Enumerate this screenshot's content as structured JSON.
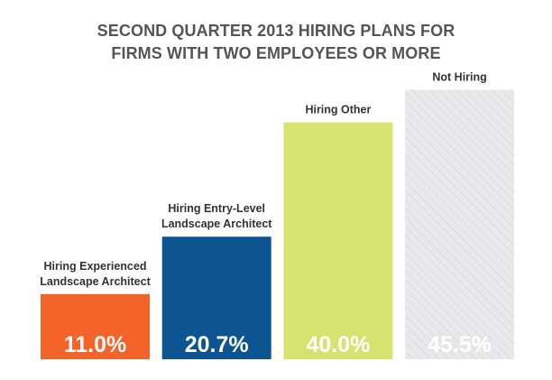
{
  "chart_data": {
    "type": "bar",
    "title_lines": [
      "SECOND QUARTER 2013 HIRING PLANS FOR",
      "FIRMS WITH TWO EMPLOYEES OR MORE"
    ],
    "categories": [
      [
        "Hiring Experienced",
        "Landscape Architect"
      ],
      [
        "Hiring Entry-Level",
        "Landscape Architect"
      ],
      [
        "Hiring Other"
      ],
      [
        "Not Hiring"
      ]
    ],
    "values": [
      11.0,
      20.7,
      40.0,
      45.5
    ],
    "value_labels": [
      "11.0%",
      "20.7%",
      "40.0%",
      "45.5%"
    ],
    "colors": [
      "#f4632a",
      "#0d5592",
      "#d7e36e",
      "#e8e8ea"
    ],
    "value_label_colors": [
      "#ffffff",
      "#ffffff",
      "#ffffff",
      "#ffffff"
    ],
    "ylim": [
      0,
      50
    ],
    "grid": false,
    "legend": "none"
  }
}
